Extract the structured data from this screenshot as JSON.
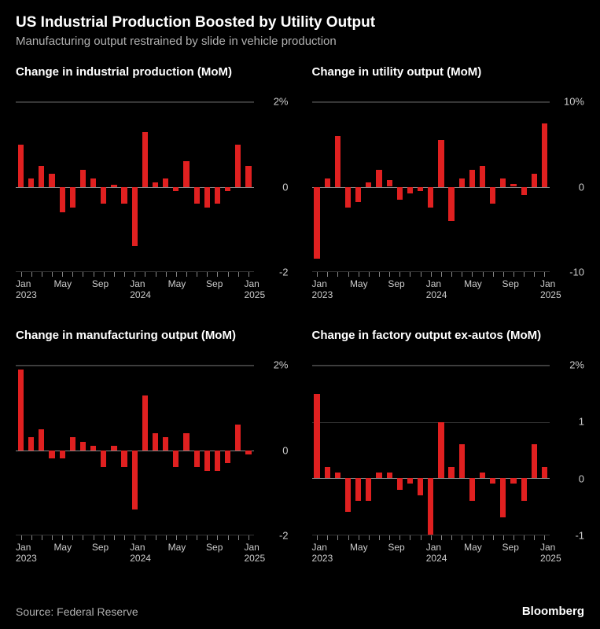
{
  "title": "US Industrial Production Boosted by Utility Output",
  "subtitle": "Manufacturing output restrained by slide in vehicle production",
  "source": "Source: Federal Reserve",
  "brand": "Bloomberg",
  "colors": {
    "background": "#000000",
    "text": "#ffffff",
    "subtext": "#b0b0b0",
    "axis": "#cccccc",
    "grid": "#333333",
    "zero": "#888888",
    "bar": "#e02020"
  },
  "xaxis_labels": [
    {
      "pos": 0.02,
      "month": "Jan",
      "year": "2023"
    },
    {
      "pos": 0.18,
      "month": "May",
      "year": ""
    },
    {
      "pos": 0.34,
      "month": "Sep",
      "year": ""
    },
    {
      "pos": 0.5,
      "month": "Jan",
      "year": "2024"
    },
    {
      "pos": 0.66,
      "month": "May",
      "year": ""
    },
    {
      "pos": 0.82,
      "month": "Sep",
      "year": ""
    },
    {
      "pos": 0.98,
      "month": "Jan",
      "year": "2025"
    }
  ],
  "panels": [
    {
      "title": "Change in industrial production (MoM)",
      "ymin": -2,
      "ymax": 2,
      "yticks": [
        {
          "v": 2,
          "label": "2%"
        },
        {
          "v": 0,
          "label": "0"
        },
        {
          "v": -2,
          "label": "-2"
        }
      ],
      "values": [
        1.0,
        0.2,
        0.5,
        0.3,
        -0.6,
        -0.5,
        0.4,
        0.2,
        -0.4,
        0.05,
        -0.4,
        -1.4,
        1.3,
        0.1,
        0.2,
        -0.1,
        0.6,
        -0.4,
        -0.5,
        -0.4,
        -0.1,
        1.0,
        0.5
      ]
    },
    {
      "title": "Change in utility output (MoM)",
      "ymin": -10,
      "ymax": 10,
      "yticks": [
        {
          "v": 10,
          "label": "10%"
        },
        {
          "v": 0,
          "label": "0"
        },
        {
          "v": -10,
          "label": "-10"
        }
      ],
      "values": [
        -8.5,
        1.0,
        6.0,
        -2.5,
        -1.8,
        0.5,
        2.0,
        0.8,
        -1.5,
        -0.8,
        -0.5,
        -2.5,
        5.5,
        -4.0,
        1.0,
        2.0,
        2.5,
        -2.0,
        1.0,
        0.3,
        -1.0,
        1.5,
        7.5
      ]
    },
    {
      "title": "Change in manufacturing output (MoM)",
      "ymin": -2,
      "ymax": 2,
      "yticks": [
        {
          "v": 2,
          "label": "2%"
        },
        {
          "v": 0,
          "label": "0"
        },
        {
          "v": -2,
          "label": "-2"
        }
      ],
      "values": [
        1.9,
        0.3,
        0.5,
        -0.2,
        -0.2,
        0.3,
        0.2,
        0.1,
        -0.4,
        0.1,
        -0.4,
        -1.4,
        1.3,
        0.4,
        0.3,
        -0.4,
        0.4,
        -0.4,
        -0.5,
        -0.5,
        -0.3,
        0.6,
        -0.1
      ]
    },
    {
      "title": "Change in factory output ex-autos (MoM)",
      "ymin": -1,
      "ymax": 2,
      "yticks": [
        {
          "v": 2,
          "label": "2%"
        },
        {
          "v": 1,
          "label": "1"
        },
        {
          "v": 0,
          "label": "0"
        },
        {
          "v": -1,
          "label": "-1"
        }
      ],
      "values": [
        1.5,
        0.2,
        0.1,
        -0.6,
        -0.4,
        -0.4,
        0.1,
        0.1,
        -0.2,
        -0.1,
        -0.3,
        -1.0,
        1.0,
        0.2,
        0.6,
        -0.4,
        0.1,
        -0.1,
        -0.7,
        -0.1,
        -0.4,
        0.6,
        0.2
      ]
    }
  ]
}
